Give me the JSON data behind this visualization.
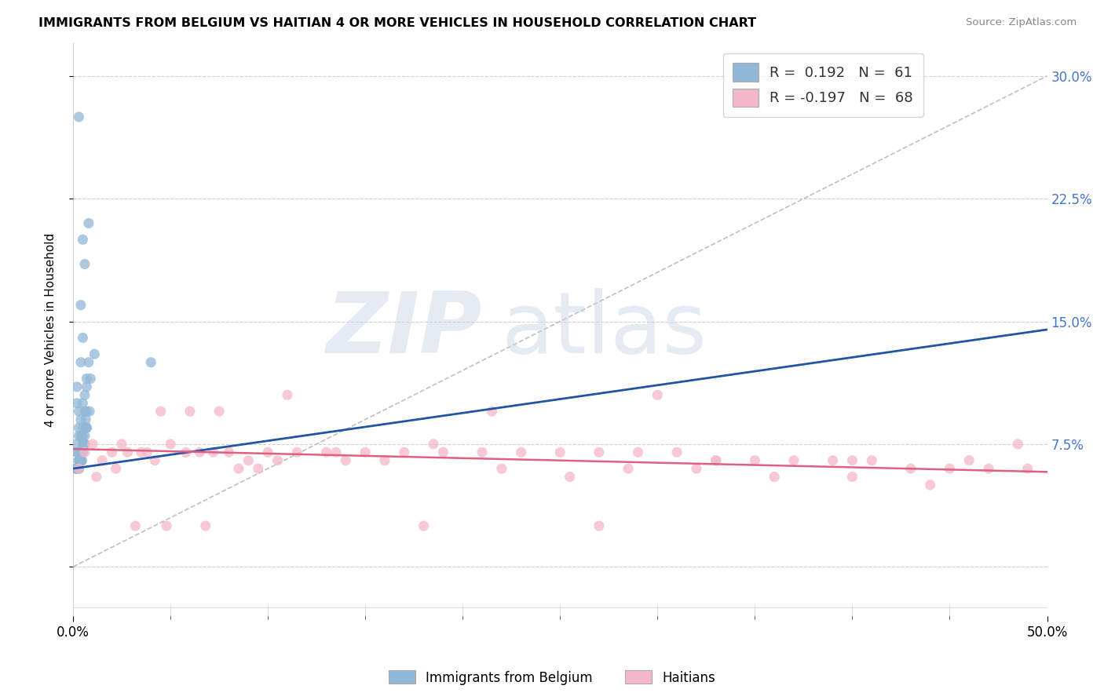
{
  "title": "IMMIGRANTS FROM BELGIUM VS HAITIAN 4 OR MORE VEHICLES IN HOUSEHOLD CORRELATION CHART",
  "source": "Source: ZipAtlas.com",
  "ylabel": "4 or more Vehicles in Household",
  "xlim": [
    0.0,
    50.0
  ],
  "ylim": [
    -3.0,
    32.0
  ],
  "yticks": [
    0.0,
    7.5,
    15.0,
    22.5,
    30.0
  ],
  "ytick_labels": [
    "",
    "7.5%",
    "15.0%",
    "22.5%",
    "30.0%"
  ],
  "blue_color": "#92b8d8",
  "pink_color": "#f5b8c8",
  "blue_line_color": "#2255a4",
  "pink_line_color": "#e06080",
  "dashed_line_color": "#c0c0c0",
  "blue_scatter_x": [
    0.3,
    0.5,
    0.8,
    0.4,
    0.6,
    0.2,
    0.4,
    0.7,
    0.5,
    0.3,
    0.2,
    0.4,
    0.6,
    0.3,
    0.5,
    0.8,
    0.3,
    0.5,
    0.7,
    0.2,
    0.4,
    0.6,
    0.7,
    0.2,
    0.5,
    0.9,
    0.3,
    0.5,
    0.2,
    0.4,
    0.15,
    0.45,
    0.6,
    0.3,
    1.1,
    0.65,
    0.2,
    0.4,
    0.55,
    0.3,
    0.45,
    0.7,
    0.15,
    0.6,
    0.4,
    0.25,
    0.5,
    0.85,
    0.3,
    0.65,
    0.45,
    0.25,
    0.35,
    0.6,
    0.7,
    0.3,
    0.45,
    0.15,
    0.5,
    0.35,
    4.0
  ],
  "blue_scatter_y": [
    27.5,
    20.0,
    21.0,
    16.0,
    18.5,
    11.0,
    12.5,
    11.5,
    14.0,
    9.5,
    10.0,
    9.0,
    10.5,
    8.5,
    10.0,
    12.5,
    8.0,
    8.5,
    9.5,
    7.5,
    8.0,
    9.5,
    11.0,
    7.0,
    8.0,
    11.5,
    6.5,
    7.5,
    7.0,
    7.0,
    6.0,
    6.5,
    7.5,
    6.5,
    13.0,
    9.0,
    6.0,
    6.5,
    7.5,
    6.0,
    7.0,
    8.5,
    6.0,
    8.0,
    6.5,
    6.0,
    7.0,
    9.5,
    6.0,
    8.5,
    7.0,
    6.0,
    6.5,
    7.5,
    8.5,
    6.0,
    6.5,
    6.0,
    7.0,
    6.5,
    12.5
  ],
  "pink_scatter_x": [
    0.3,
    0.6,
    1.0,
    1.5,
    2.0,
    2.8,
    3.5,
    4.2,
    5.0,
    5.8,
    6.5,
    7.2,
    8.0,
    9.0,
    10.0,
    11.5,
    13.0,
    15.0,
    17.0,
    19.0,
    21.0,
    23.0,
    25.0,
    27.0,
    29.0,
    31.0,
    33.0,
    35.0,
    37.0,
    39.0,
    41.0,
    43.0,
    45.0,
    47.0,
    49.0,
    2.5,
    3.8,
    4.5,
    6.0,
    7.5,
    9.5,
    11.0,
    13.5,
    16.0,
    18.5,
    21.5,
    25.5,
    28.5,
    32.0,
    36.0,
    40.0,
    44.0,
    1.2,
    2.2,
    3.2,
    4.8,
    6.8,
    8.5,
    10.5,
    14.0,
    18.0,
    22.0,
    27.0,
    33.0,
    40.0,
    46.0,
    48.5,
    30.0
  ],
  "pink_scatter_y": [
    6.0,
    7.0,
    7.5,
    6.5,
    7.0,
    7.0,
    7.0,
    6.5,
    7.5,
    7.0,
    7.0,
    7.0,
    7.0,
    6.5,
    7.0,
    7.0,
    7.0,
    7.0,
    7.0,
    7.0,
    7.0,
    7.0,
    7.0,
    7.0,
    7.0,
    7.0,
    6.5,
    6.5,
    6.5,
    6.5,
    6.5,
    6.0,
    6.0,
    6.0,
    6.0,
    7.5,
    7.0,
    9.5,
    9.5,
    9.5,
    6.0,
    10.5,
    7.0,
    6.5,
    7.5,
    9.5,
    5.5,
    6.0,
    6.0,
    5.5,
    5.5,
    5.0,
    5.5,
    6.0,
    2.5,
    2.5,
    2.5,
    6.0,
    6.5,
    6.5,
    2.5,
    6.0,
    2.5,
    6.5,
    6.5,
    6.5,
    7.5,
    10.5
  ],
  "blue_line_x": [
    0.0,
    50.0
  ],
  "blue_line_y": [
    6.0,
    14.5
  ],
  "pink_line_x": [
    0.0,
    50.0
  ],
  "pink_line_y": [
    7.2,
    5.8
  ],
  "dash_line_x": [
    0.0,
    50.0
  ],
  "dash_line_y": [
    0.0,
    30.0
  ],
  "xtick_positions": [
    0.0,
    50.0
  ],
  "xtick_labels": [
    "0.0%",
    "50.0%"
  ],
  "x_minor_ticks": [
    5,
    10,
    15,
    20,
    25,
    30,
    35,
    40,
    45
  ]
}
